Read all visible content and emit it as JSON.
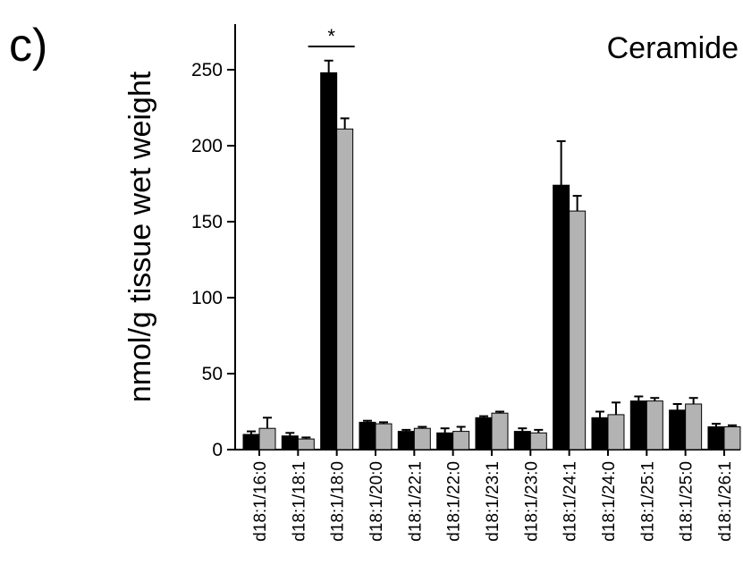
{
  "chart_data": {
    "type": "bar",
    "panel_label": "c)",
    "annotation": "Ceramide",
    "significance": "*",
    "y_label": "nmol/g tissue wet weight",
    "categories": [
      "d18:1/16:0",
      "d18:1/18:1",
      "d18:1/18:0",
      "d18:1/20:0",
      "d18:1/22:1",
      "d18:1/22:0",
      "d18:1/23:1",
      "d18:1/23:0",
      "d18:1/24:1",
      "d18:1/24:0",
      "d18:1/25:1",
      "d18:1/25:0",
      "d18:1/26:1"
    ],
    "series": [
      {
        "color": "#000000",
        "values": [
          10,
          9,
          248,
          18,
          12,
          11,
          21,
          12,
          174,
          21,
          32,
          26,
          15
        ],
        "errors": [
          2,
          2,
          8,
          1,
          1,
          3,
          1,
          2,
          29,
          4,
          3,
          4,
          2
        ]
      },
      {
        "color": "#b3b3b3",
        "values": [
          14,
          7,
          211,
          17,
          14,
          12,
          24,
          11,
          157,
          23,
          32,
          30,
          15
        ],
        "errors": [
          7,
          1,
          7,
          1,
          1,
          3,
          1,
          2,
          10,
          8,
          2,
          4,
          1
        ]
      }
    ],
    "ylim": [
      0,
      280
    ],
    "yticks": [
      0,
      50,
      100,
      150,
      200,
      250
    ]
  }
}
